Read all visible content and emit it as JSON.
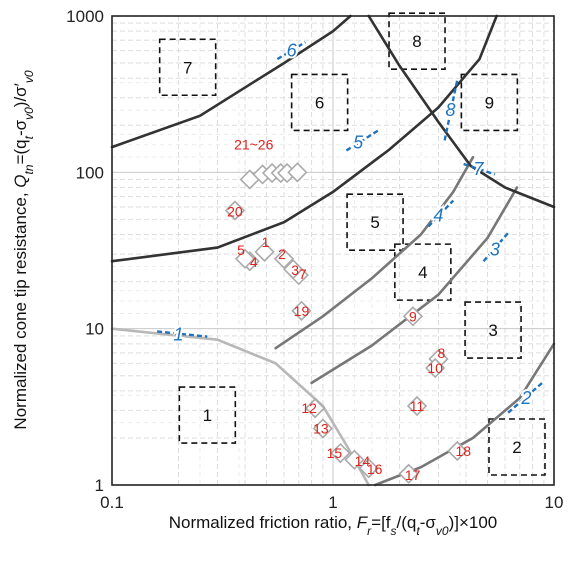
{
  "chart_data": {
    "type": "scatter",
    "xscale": "log",
    "yscale": "log",
    "xlim": [
      0.1,
      10
    ],
    "ylim": [
      1,
      1000
    ],
    "grid": true,
    "x_ticks": [
      "0.1",
      "1",
      "10"
    ],
    "y_ticks": [
      "1",
      "10",
      "100",
      "1000"
    ],
    "xlabel": {
      "main": "Normalized friction ratio, ",
      "var": "F",
      "sub": "r",
      "rest": "=[f",
      "sub2": "s",
      "rest2": "/(q",
      "sub3": "t",
      "rest3": "-σ",
      "sub4": "v0",
      "rest4": ")]×100"
    },
    "ylabel": {
      "main": "Normalized cone tip resistance, ",
      "var": "Q",
      "sub": "tn",
      "rest": "=(q",
      "sub2": "t",
      "rest2": "-σ",
      "sub3": "v0",
      "rest3": ")/σ′",
      "sub4": "v0"
    },
    "zones": [
      {
        "label": "1",
        "x": 0.27,
        "y": 2.8
      },
      {
        "label": "2",
        "x": 6.8,
        "y": 1.75
      },
      {
        "label": "3",
        "x": 5.3,
        "y": 9.8
      },
      {
        "label": "4",
        "x": 2.55,
        "y": 23
      },
      {
        "label": "5",
        "x": 1.55,
        "y": 48
      },
      {
        "label": "6",
        "x": 0.87,
        "y": 280
      },
      {
        "label": "7",
        "x": 0.22,
        "y": 470
      },
      {
        "label": "8",
        "x": 2.4,
        "y": 690
      },
      {
        "label": "9",
        "x": 5.1,
        "y": 280
      }
    ],
    "boundary_labels": [
      "1",
      "2",
      "3",
      "4",
      "5",
      "6",
      "7",
      "8"
    ],
    "points": [
      {
        "label": "1",
        "x": 0.49,
        "y": 31
      },
      {
        "label": "2",
        "x": 0.6,
        "y": 28
      },
      {
        "label": "4",
        "x": 0.42,
        "y": 27
      },
      {
        "label": "5",
        "x": 0.4,
        "y": 28
      },
      {
        "label": "7",
        "x": 0.7,
        "y": 22
      },
      {
        "label": "3",
        "x": 0.66,
        "y": 24
      },
      {
        "label": "19",
        "x": 0.72,
        "y": 13
      },
      {
        "label": "20",
        "x": 0.36,
        "y": 57
      },
      {
        "label": "8",
        "x": 3.0,
        "y": 6.4
      },
      {
        "label": "9",
        "x": 2.3,
        "y": 12
      },
      {
        "label": "10",
        "x": 2.9,
        "y": 5.6
      },
      {
        "label": "11",
        "x": 2.4,
        "y": 3.2
      },
      {
        "label": "12",
        "x": 0.83,
        "y": 3.1
      },
      {
        "label": "13",
        "x": 0.9,
        "y": 2.3
      },
      {
        "label": "14",
        "x": 1.25,
        "y": 1.45
      },
      {
        "label": "15",
        "x": 1.08,
        "y": 1.6
      },
      {
        "label": "16",
        "x": 1.45,
        "y": 1.28
      },
      {
        "label": "17",
        "x": 2.2,
        "y": 1.18
      },
      {
        "label": "18",
        "x": 3.65,
        "y": 1.65
      },
      {
        "label": "21~26",
        "x": 0.42,
        "y": 90
      },
      {
        "label": "",
        "x": 0.48,
        "y": 97
      },
      {
        "label": "",
        "x": 0.53,
        "y": 99
      },
      {
        "label": "",
        "x": 0.58,
        "y": 99
      },
      {
        "label": "",
        "x": 0.62,
        "y": 99
      },
      {
        "label": "",
        "x": 0.69,
        "y": 100
      }
    ]
  },
  "colors": {
    "boundary_dark": "#333333",
    "boundary_mid": "#777777",
    "boundary_light": "#b8b8b8",
    "label_blue": "#1e73be",
    "point_red": "#e0201b",
    "marker_gray": "#aaaaaa"
  }
}
